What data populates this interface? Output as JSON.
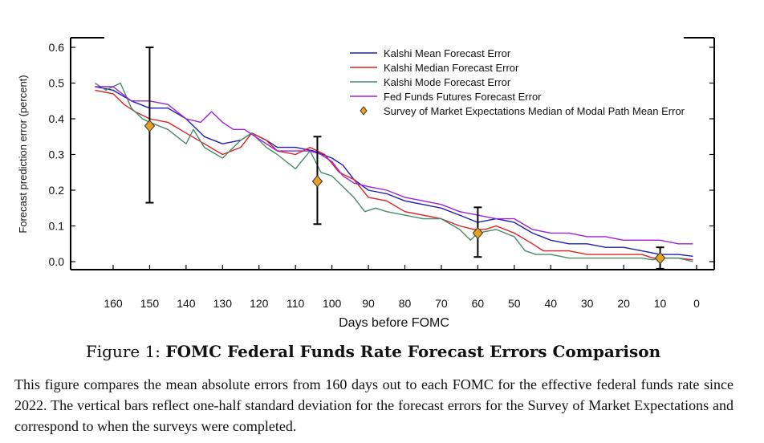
{
  "chart_data": {
    "type": "line",
    "xlabel": "Days before FOMC",
    "ylabel": "Forecast prediction error (percent)",
    "xlim": [
      0,
      168
    ],
    "ylim": [
      -0.02,
      0.62
    ],
    "x_ticks": [
      160,
      150,
      140,
      130,
      120,
      110,
      100,
      90,
      80,
      70,
      60,
      50,
      40,
      30,
      20,
      10,
      0
    ],
    "y_ticks": [
      0.0,
      0.1,
      0.2,
      0.3,
      0.4,
      0.5,
      0.6
    ],
    "y_tick_labels": [
      "0.0",
      "0.1",
      "0.2",
      "0.3",
      "0.4",
      "0.5",
      "0.6"
    ],
    "legend_position": "top-right",
    "series": [
      {
        "name": "Kalshi Mean Forecast Error",
        "color": "#1f1fb4",
        "x": [
          165,
          160,
          155,
          150,
          145,
          140,
          135,
          130,
          125,
          122,
          118,
          115,
          110,
          105,
          100,
          97,
          94,
          90,
          85,
          80,
          75,
          70,
          65,
          60,
          55,
          50,
          45,
          40,
          35,
          30,
          25,
          20,
          15,
          10,
          5,
          1
        ],
        "y": [
          0.49,
          0.48,
          0.45,
          0.43,
          0.43,
          0.4,
          0.35,
          0.33,
          0.34,
          0.36,
          0.34,
          0.32,
          0.32,
          0.31,
          0.29,
          0.27,
          0.23,
          0.2,
          0.19,
          0.17,
          0.16,
          0.15,
          0.13,
          0.11,
          0.12,
          0.11,
          0.08,
          0.06,
          0.05,
          0.05,
          0.04,
          0.04,
          0.03,
          0.02,
          0.02,
          0.015
        ]
      },
      {
        "name": "Kalshi Median Forecast Error",
        "color": "#e02020",
        "x": [
          165,
          160,
          157,
          154,
          150,
          145,
          140,
          135,
          130,
          125,
          122,
          118,
          115,
          110,
          106,
          102,
          98,
          94,
          90,
          85,
          80,
          75,
          70,
          65,
          61,
          58,
          55,
          50,
          45,
          42,
          38,
          35,
          30,
          25,
          20,
          15,
          12,
          10,
          5,
          1
        ],
        "y": [
          0.48,
          0.47,
          0.44,
          0.42,
          0.4,
          0.39,
          0.36,
          0.33,
          0.3,
          0.32,
          0.36,
          0.34,
          0.31,
          0.3,
          0.32,
          0.3,
          0.25,
          0.23,
          0.18,
          0.17,
          0.14,
          0.13,
          0.12,
          0.1,
          0.09,
          0.09,
          0.1,
          0.08,
          0.05,
          0.03,
          0.03,
          0.03,
          0.02,
          0.02,
          0.02,
          0.02,
          0.01,
          0.01,
          0.01,
          0.005
        ]
      },
      {
        "name": "Kalshi Mode Forecast Error",
        "color": "#4a8a6a",
        "x": [
          165,
          162,
          158,
          155,
          152,
          150,
          145,
          140,
          138,
          135,
          130,
          125,
          122,
          118,
          115,
          110,
          106,
          103,
          100,
          97,
          94,
          91,
          88,
          85,
          80,
          75,
          70,
          65,
          62,
          60,
          55,
          50,
          47,
          44,
          40,
          35,
          30,
          25,
          20,
          15,
          12,
          10,
          5,
          1
        ],
        "y": [
          0.5,
          0.48,
          0.5,
          0.43,
          0.4,
          0.39,
          0.37,
          0.33,
          0.37,
          0.32,
          0.29,
          0.34,
          0.36,
          0.32,
          0.3,
          0.26,
          0.31,
          0.25,
          0.24,
          0.21,
          0.18,
          0.14,
          0.15,
          0.14,
          0.13,
          0.12,
          0.12,
          0.09,
          0.06,
          0.08,
          0.09,
          0.07,
          0.03,
          0.02,
          0.02,
          0.01,
          0.01,
          0.01,
          0.01,
          0.01,
          0.005,
          0.01,
          0.01,
          0.0
        ]
      },
      {
        "name": "Fed Funds Futures Forecast Error",
        "color": "#9a22d8",
        "x": [
          165,
          160,
          155,
          150,
          145,
          140,
          136,
          133,
          130,
          127,
          124,
          121,
          118,
          115,
          110,
          106,
          103,
          100,
          97,
          94,
          90,
          85,
          80,
          75,
          70,
          65,
          60,
          55,
          50,
          45,
          40,
          35,
          30,
          25,
          20,
          15,
          10,
          5,
          1
        ],
        "y": [
          0.49,
          0.49,
          0.45,
          0.45,
          0.44,
          0.4,
          0.39,
          0.42,
          0.39,
          0.37,
          0.37,
          0.35,
          0.33,
          0.31,
          0.31,
          0.31,
          0.3,
          0.28,
          0.24,
          0.22,
          0.21,
          0.2,
          0.18,
          0.17,
          0.16,
          0.14,
          0.13,
          0.12,
          0.12,
          0.09,
          0.08,
          0.08,
          0.07,
          0.07,
          0.06,
          0.06,
          0.06,
          0.05,
          0.05
        ]
      }
    ],
    "survey": {
      "name": "Survey of Market Expectations Median of Modal Path Mean Error",
      "color": "#e8a020",
      "points": [
        {
          "x": 150,
          "y": 0.38,
          "low": 0.165,
          "high": 0.6
        },
        {
          "x": 104,
          "y": 0.225,
          "low": 0.105,
          "high": 0.35
        },
        {
          "x": 60,
          "y": 0.08,
          "low": 0.013,
          "high": 0.152
        },
        {
          "x": 10,
          "y": 0.01,
          "low": -0.02,
          "high": 0.04
        }
      ]
    }
  },
  "caption": {
    "figure_label": "Figure 1:",
    "title": "FOMC Federal Funds Rate Forecast Errors Comparison",
    "body": "This figure compares the mean absolute errors from 160 days out to each FOMC for the effective federal funds rate since 2022. The vertical bars reflect one-half standard deviation for the forecast errors for the Survey of Market Expectations and correspond to when the surveys were completed."
  }
}
